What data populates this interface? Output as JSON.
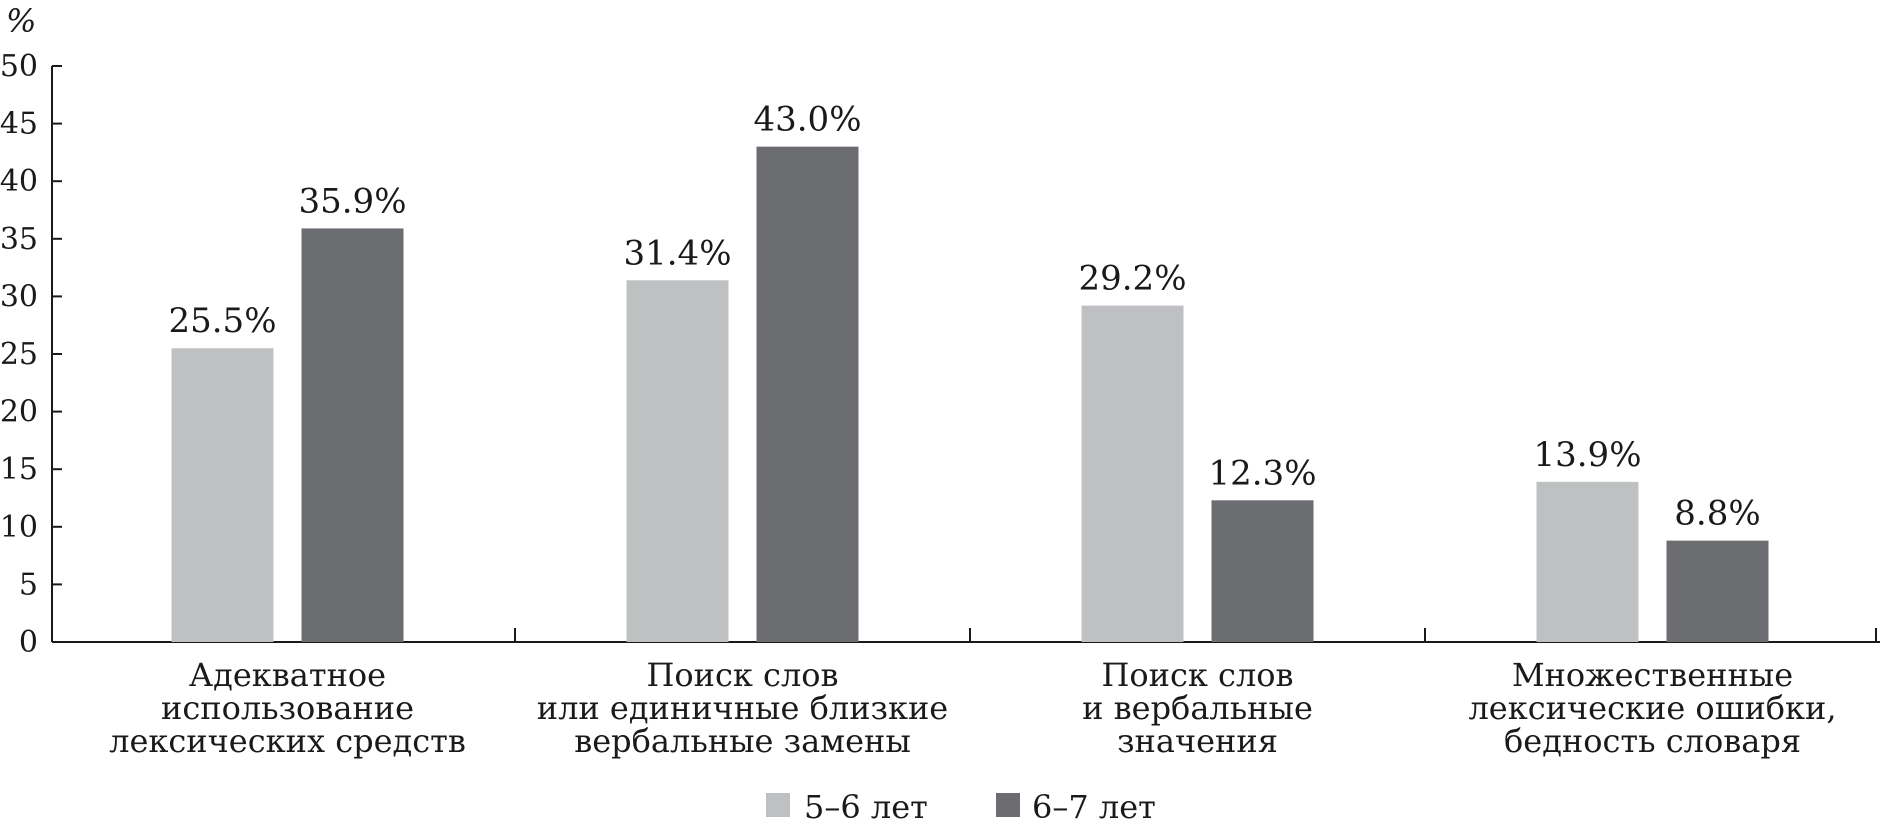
{
  "chart_data": {
    "type": "bar",
    "title": "",
    "ylabel": "%",
    "xlabel": "",
    "ylim": [
      0,
      50
    ],
    "yticks": [
      0,
      5,
      10,
      15,
      20,
      25,
      30,
      35,
      40,
      45,
      50
    ],
    "grid": false,
    "legend": "bottom",
    "categories": [
      [
        "Адекватное",
        "использование",
        "лексических средств"
      ],
      [
        "Поиск слов",
        "или единичные близкие",
        "вербальные замены"
      ],
      [
        "Поиск слов",
        "и вербальные",
        "значения"
      ],
      [
        "Множественные",
        "лексические ошибки,",
        "бедность словаря"
      ]
    ],
    "series": [
      {
        "name": "5–6 лет",
        "color": "#bfc0c2",
        "values": [
          25.5,
          31.4,
          29.2,
          13.9
        ],
        "labels": [
          "25.5%",
          "31.4%",
          "29.2%",
          "13.9%"
        ]
      },
      {
        "name": "6–7 лет",
        "color": "#6c6d70",
        "values": [
          35.9,
          43.0,
          12.3,
          8.8
        ],
        "labels": [
          "35.9%",
          "43.0%",
          "12.3%",
          "8.8%"
        ]
      }
    ]
  }
}
